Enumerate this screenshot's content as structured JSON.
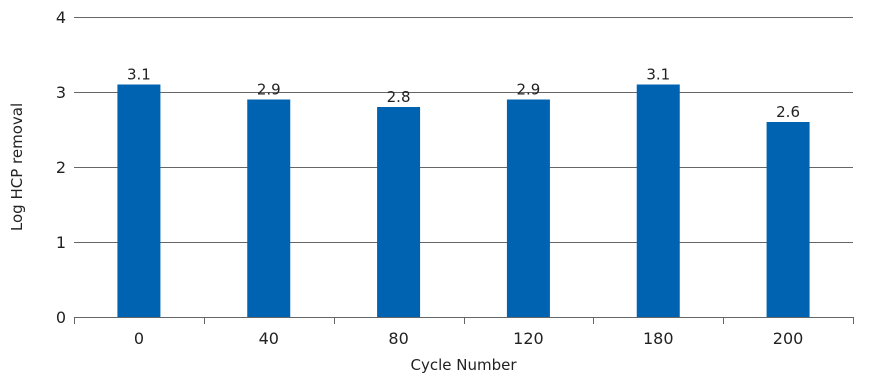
{
  "chart_data": {
    "type": "bar",
    "categories": [
      "0",
      "40",
      "80",
      "120",
      "180",
      "200"
    ],
    "values": [
      3.1,
      2.9,
      2.8,
      2.9,
      3.1,
      2.6
    ],
    "data_labels": [
      "3.1",
      "2.9",
      "2.8",
      "2.9",
      "3.1",
      "2.6"
    ],
    "xlabel": "Cycle Number",
    "ylabel": "Log HCP removal",
    "ylim": [
      0,
      4
    ],
    "yticks": [
      "0",
      "1",
      "2",
      "3",
      "4"
    ],
    "grid": true,
    "bar_color": "#0063b1"
  }
}
